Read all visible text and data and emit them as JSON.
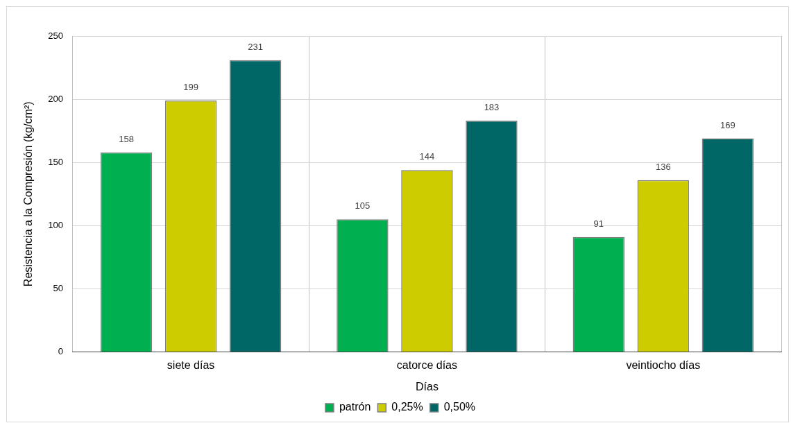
{
  "chart_data": {
    "type": "bar",
    "xlabel": "Días",
    "ylabel": "Resistencia a la Compresión (kg/cm²)",
    "categories": [
      "siete días",
      "catorce días",
      "veintiocho días"
    ],
    "series": [
      {
        "name": "patrón",
        "color": "#00b050",
        "values": [
          158,
          105,
          91
        ]
      },
      {
        "name": "0,25%",
        "color": "#cccc00",
        "values": [
          199,
          144,
          136
        ]
      },
      {
        "name": "0,50%",
        "color": "#006666",
        "values": [
          231,
          183,
          169
        ]
      }
    ],
    "ylim": [
      0,
      250
    ],
    "yticks": [
      0,
      50,
      100,
      150,
      200,
      250
    ],
    "grid": true,
    "legend": "bottom",
    "data_labels": true
  }
}
